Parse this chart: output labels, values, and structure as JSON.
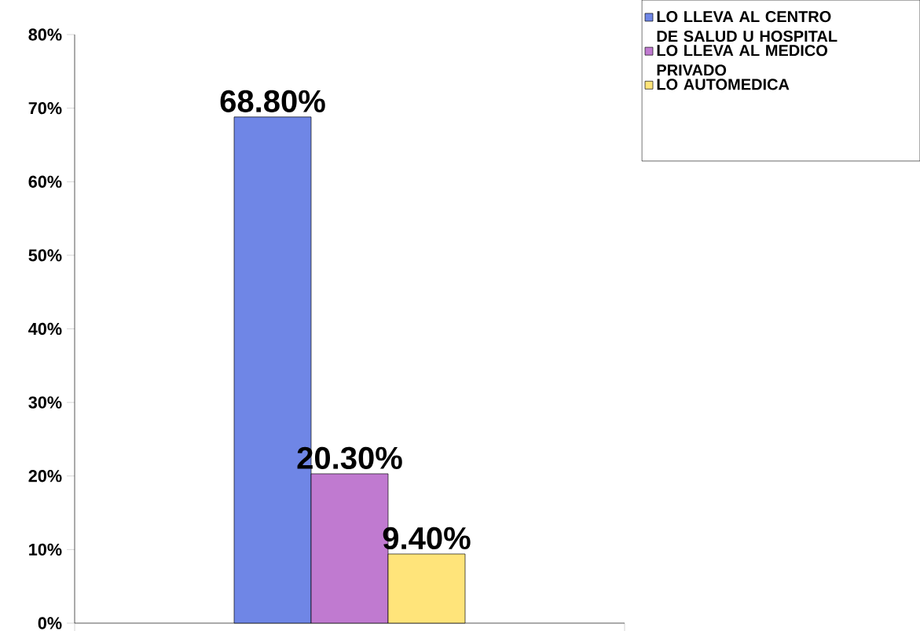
{
  "chart_data": {
    "type": "bar",
    "categories": [
      null
    ],
    "series": [
      {
        "name": "LO LLEVA AL CENTRO DE SALUD U HOSPITAL",
        "color": "#6f86e6",
        "values": [
          68.8
        ],
        "value_labels": [
          "68.80%"
        ]
      },
      {
        "name": "LO LLEVA AL MEDICO PRIVADO",
        "color": "#c07ad0",
        "values": [
          20.3
        ],
        "value_labels": [
          "20.30%"
        ]
      },
      {
        "name": "LO AUTOMEDICA",
        "color": "#ffe47a",
        "values": [
          9.4
        ],
        "value_labels": [
          "9.40%"
        ]
      }
    ],
    "ylim": [
      0,
      80
    ],
    "yticks": [
      {
        "value": 0,
        "label": "0%"
      },
      {
        "value": 10,
        "label": "10%"
      },
      {
        "value": 20,
        "label": "20%"
      },
      {
        "value": 30,
        "label": "30%"
      },
      {
        "value": 40,
        "label": "40%"
      },
      {
        "value": 50,
        "label": "50%"
      },
      {
        "value": 60,
        "label": "60%"
      },
      {
        "value": 70,
        "label": "70%"
      },
      {
        "value": 80,
        "label": "80%"
      }
    ],
    "legend": "top right"
  }
}
